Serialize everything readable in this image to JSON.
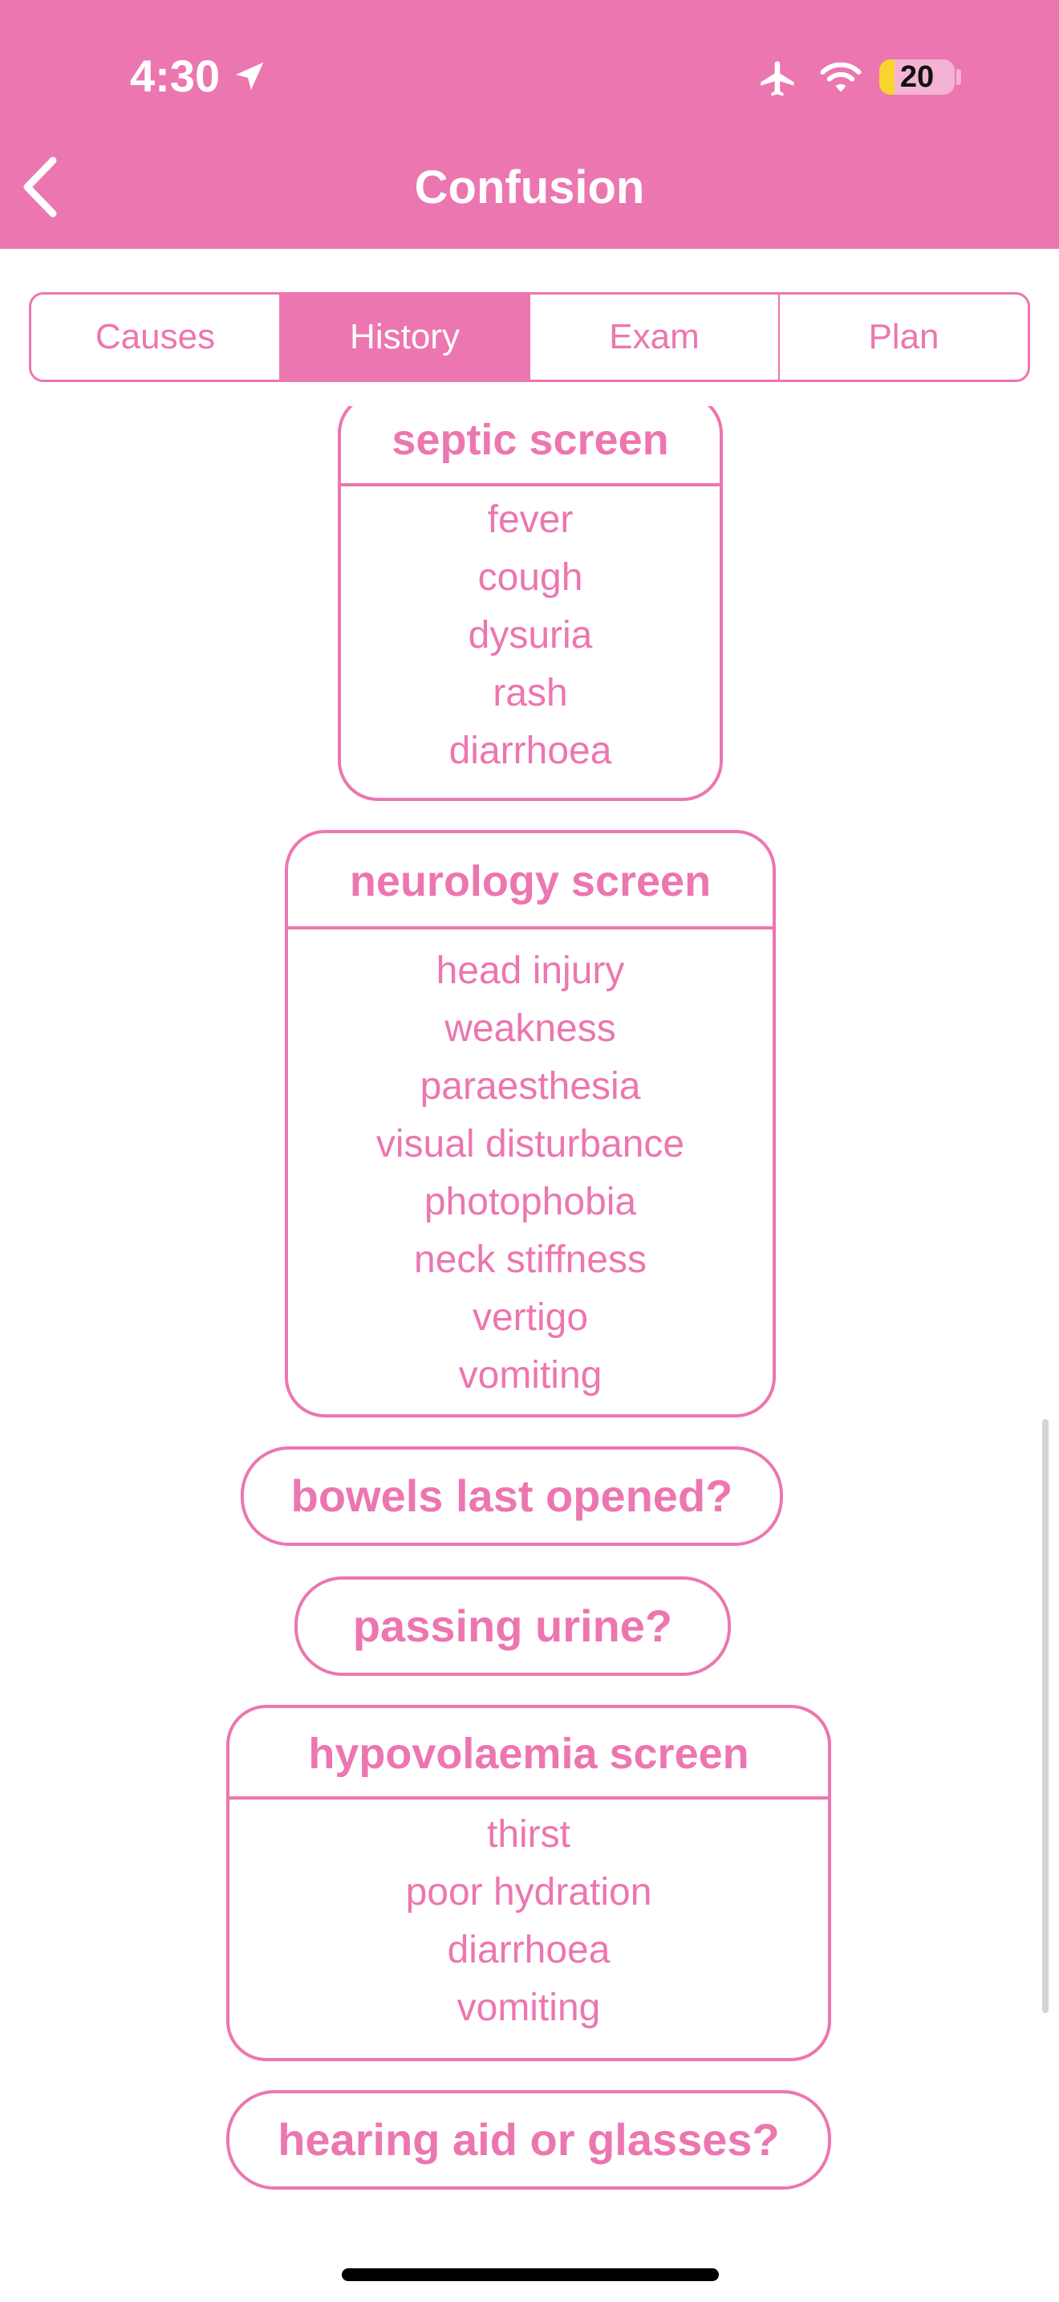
{
  "status_bar": {
    "time": "4:30",
    "battery_level": "20",
    "battery_fraction": 0.2,
    "icons": [
      "location-arrow-icon",
      "airplane-icon",
      "wifi-icon",
      "battery-icon"
    ]
  },
  "nav": {
    "title": "Confusion",
    "back_icon": "chevron-left-icon"
  },
  "tabs": [
    {
      "label": "Causes",
      "active": false
    },
    {
      "label": "History",
      "active": true
    },
    {
      "label": "Exam",
      "active": false
    },
    {
      "label": "Plan",
      "active": false
    }
  ],
  "history": {
    "septic": {
      "title": "septic screen",
      "items": [
        "fever",
        "cough",
        "dysuria",
        "rash",
        "diarrhoea"
      ]
    },
    "neurology": {
      "title": "neurology screen",
      "items": [
        "head injury",
        "weakness",
        "paraesthesia",
        "visual disturbance",
        "photophobia",
        "neck stiffness",
        "vertigo",
        "vomiting"
      ]
    },
    "bowels": "bowels last opened?",
    "urine": "passing urine?",
    "hypovolaemia": {
      "title": "hypovolaemia screen",
      "items": [
        "thirst",
        "poor hydration",
        "diarrhoea",
        "vomiting"
      ]
    },
    "hearing": "hearing aid or glasses?"
  },
  "colors": {
    "accent": "#EC76B0",
    "battery_fill": "#F8D431",
    "background": "#FFFFFF"
  }
}
